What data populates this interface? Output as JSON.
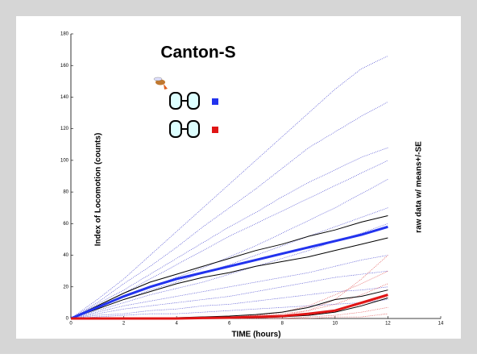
{
  "chart_data": {
    "type": "line",
    "title": "Canton-S",
    "x_label": "TIME (hours)",
    "y_label": "Index of Locomotion (counts)",
    "right_label": "raw data w/ means+/-SE",
    "x": [
      0,
      1,
      2,
      3,
      4,
      5,
      6,
      7,
      8,
      9,
      10,
      11,
      12
    ],
    "xlim": [
      0,
      14
    ],
    "xticks": [
      0,
      2,
      4,
      6,
      8,
      10,
      12,
      14
    ],
    "ylim": [
      0,
      180
    ],
    "yticks": [
      0,
      20,
      40,
      60,
      80,
      100,
      120,
      140,
      160,
      180
    ],
    "groups": [
      {
        "color": "#2233ee",
        "raw_color": "#4a4ad0",
        "se_color": "#000000",
        "raw": [
          [
            0,
            12,
            25,
            40,
            55,
            70,
            85,
            100,
            115,
            130,
            145,
            158,
            166
          ],
          [
            0,
            10,
            22,
            33,
            45,
            58,
            70,
            82,
            95,
            108,
            118,
            128,
            137
          ],
          [
            0,
            9,
            18,
            28,
            38,
            48,
            58,
            67,
            77,
            86,
            94,
            102,
            108
          ],
          [
            0,
            8,
            16,
            25,
            34,
            43,
            52,
            60,
            68,
            76,
            84,
            92,
            100
          ],
          [
            0,
            7,
            14,
            20,
            26,
            32,
            39,
            46,
            54,
            62,
            70,
            79,
            88
          ],
          [
            0,
            6,
            12,
            18,
            23,
            29,
            34,
            40,
            46,
            52,
            58,
            64,
            70
          ],
          [
            0,
            5,
            10,
            15,
            19,
            23,
            28,
            33,
            38,
            43,
            49,
            54,
            60
          ],
          [
            0,
            4,
            8,
            11,
            14,
            17,
            20,
            23,
            26,
            29,
            33,
            37,
            40
          ],
          [
            0,
            3,
            6,
            8,
            10,
            12,
            14,
            17,
            20,
            23,
            26,
            28,
            30
          ],
          [
            0,
            2,
            3,
            5,
            6,
            8,
            9,
            11,
            13,
            15,
            17,
            18,
            20
          ],
          [
            0,
            1,
            2,
            3,
            3,
            4,
            5,
            6,
            7,
            8,
            9,
            10,
            12
          ]
        ],
        "mean": [
          0,
          7,
          14,
          20,
          25,
          29,
          33,
          37,
          41,
          45,
          49,
          53,
          58
        ],
        "upper": [
          0,
          8,
          16,
          23,
          28,
          33,
          38,
          43,
          47,
          52,
          56,
          61,
          65
        ],
        "lower": [
          0,
          6,
          12,
          17,
          22,
          26,
          29,
          33,
          36,
          39,
          43,
          47,
          51
        ]
      },
      {
        "color": "#e01515",
        "raw_color": "#e05050",
        "se_color": "#000000",
        "raw": [
          [
            0,
            0,
            0,
            0,
            0,
            0,
            0,
            1,
            2,
            5,
            12,
            25,
            40
          ],
          [
            0,
            0,
            0,
            0,
            0,
            0,
            1,
            2,
            4,
            8,
            15,
            22,
            30
          ],
          [
            0,
            0,
            0,
            0,
            0,
            1,
            1,
            2,
            3,
            5,
            9,
            15,
            22
          ],
          [
            0,
            0,
            0,
            0,
            0,
            0,
            0,
            0,
            1,
            2,
            5,
            9,
            14
          ],
          [
            0,
            0,
            0,
            0,
            0,
            0,
            0,
            0,
            0,
            1,
            2,
            4,
            7
          ],
          [
            0,
            0,
            0,
            0,
            0,
            0,
            0,
            0,
            0,
            0,
            1,
            1,
            3
          ]
        ],
        "mean": [
          0,
          0,
          0,
          0,
          0,
          0.3,
          0.5,
          1,
          1.5,
          3,
          5,
          10,
          15
        ],
        "upper": [
          0,
          0,
          0,
          0,
          0.5,
          1,
          1.5,
          2.5,
          4,
          7,
          12,
          14,
          18
        ],
        "lower": [
          0,
          0,
          0,
          0,
          0,
          0,
          0,
          0.5,
          1,
          2,
          4,
          8,
          13
        ]
      }
    ]
  }
}
